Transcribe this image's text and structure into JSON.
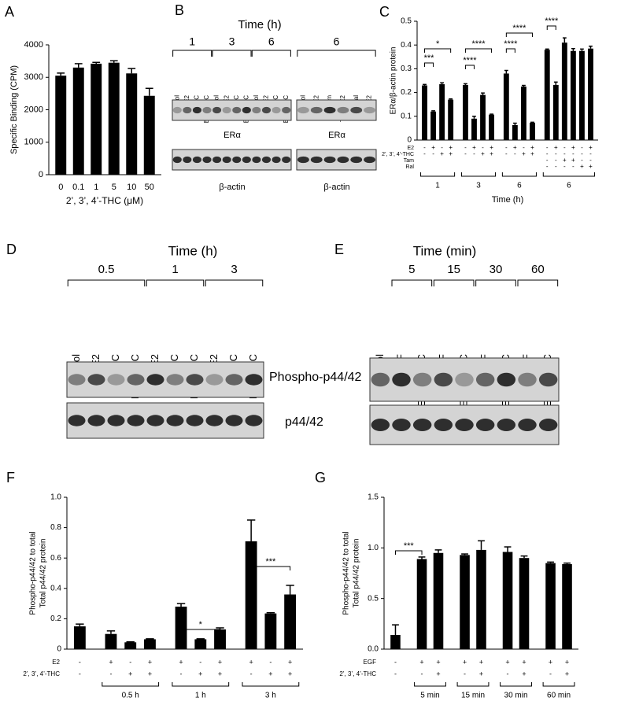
{
  "chart_data": [
    {
      "panel": "A",
      "type": "bar",
      "y_label": "Specific Binding (CPM)",
      "x_label": "2’, 3’, 4’-THC (μM)",
      "categories": [
        "0",
        "0.1",
        "1",
        "5",
        "10",
        "50"
      ],
      "values": [
        3050,
        3300,
        3420,
        3450,
        3120,
        2430
      ],
      "errors": [
        80,
        120,
        40,
        60,
        150,
        230
      ],
      "color": "#000000",
      "ylim": [
        0,
        4000
      ],
      "yticks": [
        0,
        1000,
        2000,
        3000,
        4000
      ]
    },
    {
      "panel": "C",
      "type": "bar",
      "y_label": "ERα/β-actin protein",
      "x_label": "Time (h)",
      "values": [
        0.23,
        0.12,
        0.235,
        0.17,
        0.232,
        0.09,
        0.19,
        0.107,
        0.28,
        0.063,
        0.225,
        0.073,
        0.38,
        0.232,
        0.41,
        0.375,
        0.375,
        0.385
      ],
      "errors": [
        0.004,
        0.003,
        0.006,
        0.003,
        0.005,
        0.01,
        0.008,
        0.002,
        0.013,
        0.008,
        0.005,
        0.002,
        0.003,
        0.012,
        0.02,
        0.01,
        0.008,
        0.01
      ],
      "color": "#000000",
      "ylim": [
        0,
        0.5
      ],
      "yticks": [
        0,
        0.1,
        0.2,
        0.3,
        0.4,
        0.5
      ],
      "treatments": [
        {
          "name": "E2",
          "signs": [
            "-",
            "+",
            "-",
            "+",
            "-",
            "+",
            "-",
            "+",
            "-",
            "+",
            "-",
            "+",
            "-",
            "+",
            "-",
            "+",
            "-",
            "+"
          ]
        },
        {
          "name": "2’, 3’, 4’-THC",
          "signs": [
            "-",
            "-",
            "+",
            "+",
            "-",
            "-",
            "+",
            "+",
            "-",
            "-",
            "+",
            "+",
            "-",
            "-",
            "-",
            "-",
            "-",
            "-"
          ]
        },
        {
          "name": "Tam",
          "signs": [
            null,
            null,
            null,
            null,
            null,
            null,
            null,
            null,
            null,
            null,
            null,
            null,
            "-",
            "-",
            "+",
            "+",
            "-",
            "-"
          ]
        },
        {
          "name": "Ral",
          "signs": [
            null,
            null,
            null,
            null,
            null,
            null,
            null,
            null,
            null,
            null,
            null,
            null,
            "-",
            "-",
            "-",
            "-",
            "+",
            "+"
          ]
        }
      ],
      "groups": [
        "1",
        "3",
        "6",
        "6"
      ],
      "annotations": [
        "***",
        "*",
        "****",
        "****",
        "****",
        "****",
        "****"
      ]
    },
    {
      "panel": "F",
      "type": "bar",
      "y_label": [
        "Phospho-p44/42 to total",
        "Total p44/42 protein"
      ],
      "values": [
        0.15,
        0.1,
        0.045,
        0.065,
        0.28,
        0.065,
        0.13,
        0.71,
        0.235,
        0.36
      ],
      "errors": [
        0.015,
        0.02,
        0.003,
        0.003,
        0.02,
        0.003,
        0.01,
        0.14,
        0.005,
        0.06
      ],
      "color": "#000000",
      "ylim": [
        0,
        1.0
      ],
      "yticks": [
        0,
        0.2,
        0.4,
        0.6,
        0.8,
        {
          "value": 1,
          "label": "1.0"
        }
      ],
      "treatments": [
        {
          "name": "E2",
          "signs": [
            "-",
            "+",
            "-",
            "+",
            "+",
            "-",
            "+",
            "+",
            "-",
            "+"
          ]
        },
        {
          "name": "2’, 3’, 4’-THC",
          "signs": [
            "-",
            "-",
            "+",
            "+",
            "-",
            "+",
            "+",
            "-",
            "+",
            "+"
          ]
        }
      ],
      "groups": [
        "0.5 h",
        "1 h",
        "3 h"
      ],
      "annotations": [
        "*",
        "***"
      ]
    },
    {
      "panel": "G",
      "type": "bar",
      "y_label": [
        "Phospho-p44/42 to total",
        "Total p44/42 protein"
      ],
      "values": [
        0.14,
        0.89,
        0.95,
        0.93,
        0.98,
        0.96,
        0.9,
        0.85,
        0.84
      ],
      "errors": [
        0.1,
        0.02,
        0.03,
        0.01,
        0.09,
        0.05,
        0.02,
        0.01,
        0.01
      ],
      "color": "#000000",
      "ylim": [
        0,
        1.5
      ],
      "yticks": [
        {
          "value": 0,
          "label": "0.0"
        },
        0.5,
        {
          "value": 1,
          "label": "1.0"
        },
        1.5
      ],
      "treatments": [
        {
          "name": "EGF",
          "signs": [
            "-",
            "+",
            "+",
            "+",
            "+",
            "+",
            "+",
            "+",
            "+"
          ]
        },
        {
          "name": "2’, 3’, 4’-THC",
          "signs": [
            "-",
            "-",
            "+",
            "-",
            "+",
            "-",
            "+",
            "-",
            "+"
          ]
        }
      ],
      "groups": [
        "5 min",
        "15 min",
        "30 min",
        "60 min"
      ],
      "annotations": [
        "***"
      ]
    }
  ],
  "blots": [
    {
      "panel": "B",
      "title": "Time (h)",
      "groups": [
        "1",
        "3",
        "6",
        "6"
      ],
      "gels": [
        {
          "lanes": [
            "Control",
            "E2",
            "THC",
            "E2 + THC",
            "Control",
            "E2",
            "THC",
            "E2 + THC",
            "Control",
            "E2",
            "THC",
            "E2 + THC"
          ],
          "labels": [
            "ERα",
            "β-actin"
          ]
        },
        {
          "lanes": [
            "Control",
            "E2",
            "Tam",
            "Tam + E2",
            "Ral",
            "Ral + E2"
          ],
          "labels": [
            "ERα",
            "β-actin"
          ]
        }
      ]
    },
    {
      "panel": "D",
      "title": "Time (h)",
      "groups": [
        "0.5",
        "1",
        "3"
      ],
      "gels": [
        {
          "lanes": [
            "Control",
            "E2",
            "THC",
            "E2 + THC",
            "E2",
            "THC",
            "E2 + THC",
            "E2",
            "THC",
            "E2 + THC"
          ],
          "labels": [
            "Phospho-p44/42",
            "p44/42"
          ]
        }
      ]
    },
    {
      "panel": "E",
      "title": "Time (min)",
      "groups": [
        "5",
        "15",
        "30",
        "60"
      ],
      "gels": [
        {
          "lanes": [
            "Control",
            "EGF",
            "EGF + THC",
            "EGF",
            "EGF + THC",
            "EGF",
            "EGF + THC",
            "EGF",
            "EGF + THC"
          ]
        }
      ]
    }
  ]
}
